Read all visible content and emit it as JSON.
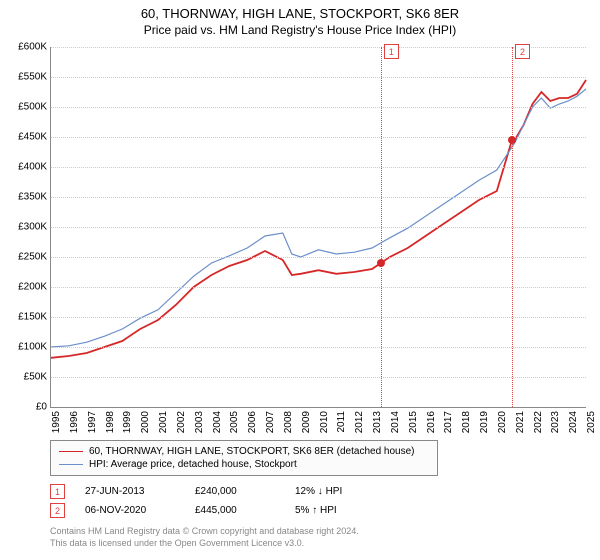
{
  "title": "60, THORNWAY, HIGH LANE, STOCKPORT, SK6 8ER",
  "subtitle": "Price paid vs. HM Land Registry's House Price Index (HPI)",
  "chart": {
    "type": "line",
    "background": "#ffffff",
    "grid_color": "#cccccc",
    "ylim": [
      0,
      600000
    ],
    "ytick_step": 50000,
    "ylabels": [
      "£0",
      "£50K",
      "£100K",
      "£150K",
      "£200K",
      "£250K",
      "£300K",
      "£350K",
      "£400K",
      "£450K",
      "£500K",
      "£550K",
      "£600K"
    ],
    "xlim": [
      1995,
      2025
    ],
    "xlabels": [
      "1995",
      "1996",
      "1997",
      "1998",
      "1999",
      "2000",
      "2001",
      "2002",
      "2003",
      "2004",
      "2005",
      "2006",
      "2007",
      "2008",
      "2009",
      "2010",
      "2011",
      "2012",
      "2013",
      "2014",
      "2015",
      "2016",
      "2017",
      "2018",
      "2019",
      "2020",
      "2021",
      "2022",
      "2023",
      "2024",
      "2025"
    ],
    "series": [
      {
        "name": "price_paid",
        "label": "60, THORNWAY, HIGH LANE, STOCKPORT, SK6 8ER (detached house)",
        "color": "#d62728",
        "width": 1.8,
        "points": [
          [
            1995,
            82000
          ],
          [
            1996,
            85000
          ],
          [
            1997,
            90000
          ],
          [
            1998,
            100000
          ],
          [
            1999,
            110000
          ],
          [
            2000,
            130000
          ],
          [
            2001,
            145000
          ],
          [
            2002,
            170000
          ],
          [
            2003,
            200000
          ],
          [
            2004,
            220000
          ],
          [
            2005,
            235000
          ],
          [
            2006,
            245000
          ],
          [
            2007,
            260000
          ],
          [
            2008,
            245000
          ],
          [
            2008.5,
            220000
          ],
          [
            2009,
            222000
          ],
          [
            2010,
            228000
          ],
          [
            2011,
            222000
          ],
          [
            2012,
            225000
          ],
          [
            2013,
            230000
          ],
          [
            2013.5,
            240000
          ],
          [
            2014,
            250000
          ],
          [
            2015,
            265000
          ],
          [
            2016,
            285000
          ],
          [
            2017,
            305000
          ],
          [
            2018,
            325000
          ],
          [
            2019,
            345000
          ],
          [
            2020,
            360000
          ],
          [
            2020.85,
            445000
          ],
          [
            2021,
            445000
          ],
          [
            2021.5,
            470000
          ],
          [
            2022,
            505000
          ],
          [
            2022.5,
            525000
          ],
          [
            2023,
            510000
          ],
          [
            2023.5,
            515000
          ],
          [
            2024,
            515000
          ],
          [
            2024.5,
            522000
          ],
          [
            2025,
            545000
          ]
        ]
      },
      {
        "name": "hpi",
        "label": "HPI: Average price, detached house, Stockport",
        "color": "#6b8fc9",
        "width": 1.2,
        "points": [
          [
            1995,
            100000
          ],
          [
            1996,
            102000
          ],
          [
            1997,
            108000
          ],
          [
            1998,
            118000
          ],
          [
            1999,
            130000
          ],
          [
            2000,
            148000
          ],
          [
            2001,
            162000
          ],
          [
            2002,
            190000
          ],
          [
            2003,
            218000
          ],
          [
            2004,
            240000
          ],
          [
            2005,
            252000
          ],
          [
            2006,
            265000
          ],
          [
            2007,
            285000
          ],
          [
            2008,
            290000
          ],
          [
            2008.5,
            255000
          ],
          [
            2009,
            250000
          ],
          [
            2010,
            262000
          ],
          [
            2011,
            255000
          ],
          [
            2012,
            258000
          ],
          [
            2013,
            265000
          ],
          [
            2014,
            282000
          ],
          [
            2015,
            298000
          ],
          [
            2016,
            318000
          ],
          [
            2017,
            338000
          ],
          [
            2018,
            358000
          ],
          [
            2019,
            378000
          ],
          [
            2020,
            395000
          ],
          [
            2021,
            440000
          ],
          [
            2022,
            500000
          ],
          [
            2022.5,
            515000
          ],
          [
            2023,
            498000
          ],
          [
            2023.5,
            505000
          ],
          [
            2024,
            510000
          ],
          [
            2024.5,
            518000
          ],
          [
            2025,
            530000
          ]
        ]
      }
    ],
    "markers": [
      {
        "n": "1",
        "x": 2013.49,
        "y": 240000,
        "color": "#d62728"
      },
      {
        "n": "2",
        "x": 2020.85,
        "y": 445000,
        "color": "#d62728"
      }
    ],
    "marker_line_color": "#e04040"
  },
  "legend_box_bg": "#fbfbfb",
  "sales": [
    {
      "n": "1",
      "date": "27-JUN-2013",
      "price": "£240,000",
      "hpi": "12% ↓ HPI"
    },
    {
      "n": "2",
      "date": "06-NOV-2020",
      "price": "£445,000",
      "hpi": "5% ↑ HPI"
    }
  ],
  "footnote1": "Contains HM Land Registry data © Crown copyright and database right 2024.",
  "footnote2": "This data is licensed under the Open Government Licence v3.0."
}
